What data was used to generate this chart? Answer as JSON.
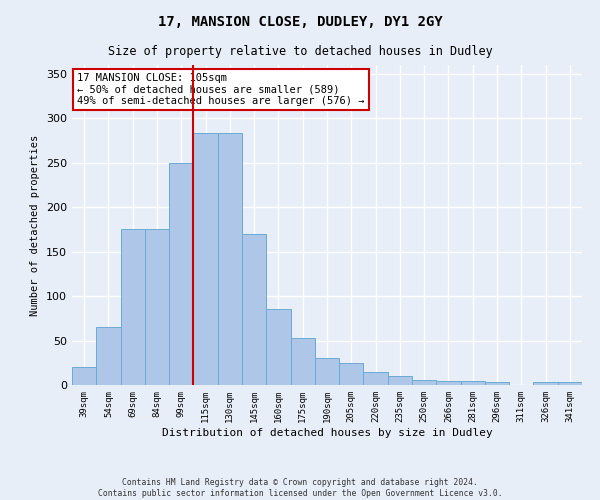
{
  "title1": "17, MANSION CLOSE, DUDLEY, DY1 2GY",
  "title2": "Size of property relative to detached houses in Dudley",
  "xlabel": "Distribution of detached houses by size in Dudley",
  "ylabel": "Number of detached properties",
  "categories": [
    "39sqm",
    "54sqm",
    "69sqm",
    "84sqm",
    "99sqm",
    "115sqm",
    "130sqm",
    "145sqm",
    "160sqm",
    "175sqm",
    "190sqm",
    "205sqm",
    "220sqm",
    "235sqm",
    "250sqm",
    "266sqm",
    "281sqm",
    "296sqm",
    "311sqm",
    "326sqm",
    "341sqm"
  ],
  "values": [
    20,
    65,
    175,
    175,
    250,
    283,
    283,
    170,
    85,
    53,
    30,
    25,
    15,
    10,
    6,
    5,
    5,
    3,
    0,
    3,
    3
  ],
  "bar_color": "#aec6e8",
  "bar_edge_color": "#6aaad4",
  "vline_x": 4.5,
  "vline_color": "#cc0000",
  "annotation_text": "17 MANSION CLOSE: 105sqm\n← 50% of detached houses are smaller (589)\n49% of semi-detached houses are larger (576) →",
  "annotation_box_color": "#ffffff",
  "annotation_border_color": "#cc0000",
  "ylim": [
    0,
    360
  ],
  "footnote": "Contains HM Land Registry data © Crown copyright and database right 2024.\nContains public sector information licensed under the Open Government Licence v3.0.",
  "bg_color": "#e8eef8",
  "plot_bg_color": "#e8eef8",
  "grid_color": "#ffffff"
}
